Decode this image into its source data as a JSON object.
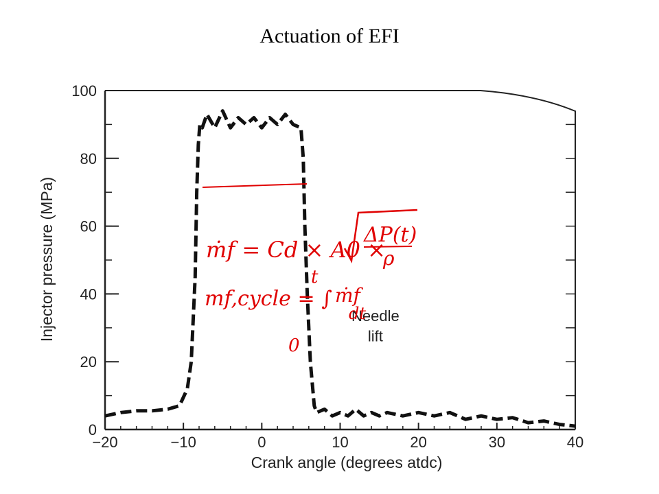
{
  "slide_title": "Actuation of EFI",
  "colors": {
    "trace": "#111111",
    "handwriting": "#e00000",
    "axis": "#222222"
  },
  "chart_data": {
    "type": "line",
    "title": "",
    "xlabel": "Crank angle (degrees atdc)",
    "ylabel": "Injector pressure (MPa)",
    "xlim": [
      -20,
      40
    ],
    "ylim": [
      0,
      100
    ],
    "x_ticks": [
      "−20",
      "−10",
      "0",
      "10",
      "20",
      "30",
      "40"
    ],
    "y_ticks": [
      "0",
      "20",
      "40",
      "60",
      "80",
      "100"
    ],
    "grid": false,
    "line_style": "dashed",
    "series": [
      {
        "x": [
          -20,
          -18,
          -16,
          -14,
          -12,
          -10.5,
          -9.5,
          -9,
          -8.5,
          -8.3,
          -8.1,
          -7.9,
          -7.6,
          -7,
          -6,
          -5,
          -4,
          -3,
          -2,
          -1,
          0,
          1,
          2,
          3,
          4,
          5,
          5.3,
          5.5,
          5.8,
          6.2,
          6.7,
          7,
          8,
          9,
          10,
          11,
          12,
          13,
          14,
          15,
          16,
          18,
          20,
          22,
          24,
          26,
          28,
          30,
          32,
          34,
          36,
          38,
          40
        ],
        "y": [
          4,
          5,
          5.5,
          5.5,
          6,
          7,
          12,
          20,
          45,
          70,
          84,
          90,
          89,
          93,
          89,
          94,
          89,
          92,
          90,
          92,
          89,
          92,
          90,
          93,
          90,
          89,
          80,
          60,
          40,
          20,
          7,
          5,
          6,
          4,
          5,
          4,
          6,
          4,
          5,
          4,
          5,
          4,
          5,
          4,
          5,
          3,
          4,
          3,
          3.5,
          2,
          2.5,
          1.5,
          1
        ]
      }
    ],
    "annotations": [
      {
        "text": "Needle",
        "x": 14.5,
        "y": 32
      },
      {
        "text": "lift",
        "x": 14.5,
        "y": 26
      }
    ]
  },
  "handwriting": {
    "line1_lhs": "ṁf = Cd × A0 ×",
    "sqrt_num": "ΔP(t)",
    "sqrt_den": "ρ",
    "line2_lhs": "mf,cycle = ∫",
    "upper_limit": "t",
    "lower_limit": "0",
    "integrand": "ṁf",
    "differential": "dt"
  }
}
